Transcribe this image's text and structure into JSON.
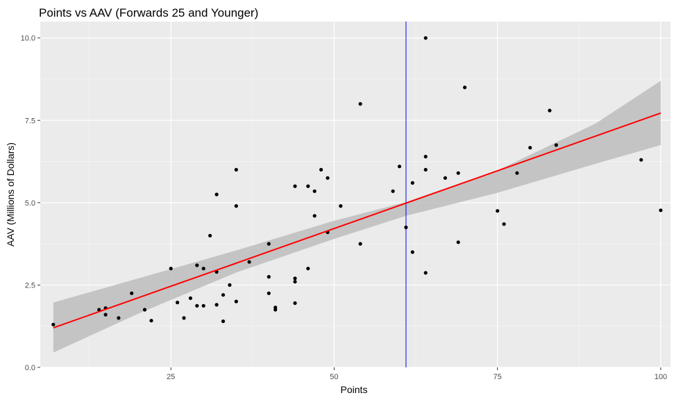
{
  "chart_data": {
    "type": "scatter",
    "title": "Points vs AAV (Forwards 25 and Younger)",
    "xlabel": "Points",
    "ylabel": "AAV (Millions of Dollars)",
    "xlim": [
      5,
      101.5
    ],
    "ylim": [
      0,
      10.5
    ],
    "x_ticks": [
      25,
      50,
      75,
      100
    ],
    "x_tick_labels": [
      "25",
      "50",
      "75",
      "100"
    ],
    "y_ticks": [
      0,
      2.5,
      5,
      7.5,
      10
    ],
    "y_tick_labels": [
      "0.0",
      "2.5",
      "5.0",
      "7.5",
      "10.0"
    ],
    "x_minor_ticks": [
      12.5,
      37.5,
      62.5,
      87.5
    ],
    "y_minor_ticks": [
      1.25,
      3.75,
      6.25,
      8.75
    ],
    "grid": true,
    "background": "#ebebeb",
    "points": [
      {
        "x": 7,
        "y": 1.3
      },
      {
        "x": 14,
        "y": 1.75
      },
      {
        "x": 15,
        "y": 1.8
      },
      {
        "x": 15,
        "y": 1.6
      },
      {
        "x": 17,
        "y": 1.5
      },
      {
        "x": 19,
        "y": 2.25
      },
      {
        "x": 21,
        "y": 1.75
      },
      {
        "x": 22,
        "y": 1.42
      },
      {
        "x": 25,
        "y": 3.0
      },
      {
        "x": 26,
        "y": 1.97
      },
      {
        "x": 27,
        "y": 1.5
      },
      {
        "x": 28,
        "y": 2.1
      },
      {
        "x": 29,
        "y": 3.1
      },
      {
        "x": 29,
        "y": 1.87
      },
      {
        "x": 30,
        "y": 3.0
      },
      {
        "x": 30,
        "y": 1.87
      },
      {
        "x": 31,
        "y": 4.0
      },
      {
        "x": 32,
        "y": 5.25
      },
      {
        "x": 32,
        "y": 2.9
      },
      {
        "x": 32,
        "y": 1.9
      },
      {
        "x": 33,
        "y": 2.2
      },
      {
        "x": 33,
        "y": 1.4
      },
      {
        "x": 34,
        "y": 2.5
      },
      {
        "x": 35,
        "y": 6.0
      },
      {
        "x": 35,
        "y": 4.9
      },
      {
        "x": 35,
        "y": 2.0
      },
      {
        "x": 37,
        "y": 3.2
      },
      {
        "x": 40,
        "y": 3.75
      },
      {
        "x": 40,
        "y": 2.75
      },
      {
        "x": 40,
        "y": 2.25
      },
      {
        "x": 41,
        "y": 1.82
      },
      {
        "x": 41,
        "y": 1.75
      },
      {
        "x": 44,
        "y": 5.5
      },
      {
        "x": 44,
        "y": 2.7
      },
      {
        "x": 44,
        "y": 2.6
      },
      {
        "x": 44,
        "y": 1.95
      },
      {
        "x": 46,
        "y": 5.5
      },
      {
        "x": 46,
        "y": 3.0
      },
      {
        "x": 47,
        "y": 5.35
      },
      {
        "x": 47,
        "y": 4.6
      },
      {
        "x": 48,
        "y": 6.0
      },
      {
        "x": 49,
        "y": 5.75
      },
      {
        "x": 49,
        "y": 4.1
      },
      {
        "x": 51,
        "y": 4.9
      },
      {
        "x": 54,
        "y": 8.0
      },
      {
        "x": 54,
        "y": 3.75
      },
      {
        "x": 59,
        "y": 5.35
      },
      {
        "x": 60,
        "y": 6.1
      },
      {
        "x": 61,
        "y": 4.25
      },
      {
        "x": 62,
        "y": 5.6
      },
      {
        "x": 62,
        "y": 3.5
      },
      {
        "x": 64,
        "y": 10.0
      },
      {
        "x": 64,
        "y": 6.4
      },
      {
        "x": 64,
        "y": 6.0
      },
      {
        "x": 64,
        "y": 2.87
      },
      {
        "x": 67,
        "y": 5.75
      },
      {
        "x": 69,
        "y": 5.9
      },
      {
        "x": 69,
        "y": 3.8
      },
      {
        "x": 70,
        "y": 8.5
      },
      {
        "x": 75,
        "y": 4.75
      },
      {
        "x": 76,
        "y": 4.35
      },
      {
        "x": 78,
        "y": 5.9
      },
      {
        "x": 80,
        "y": 6.67
      },
      {
        "x": 83,
        "y": 7.8
      },
      {
        "x": 84,
        "y": 6.75
      },
      {
        "x": 97,
        "y": 6.3
      },
      {
        "x": 100,
        "y": 4.77
      }
    ],
    "fit_line": {
      "type": "linear",
      "color": "#ff0000",
      "x": [
        7,
        100
      ],
      "y": [
        1.2,
        7.72
      ]
    },
    "confidence_band": {
      "color": "#bdbdbd",
      "x": [
        7,
        20,
        35,
        50,
        61,
        75,
        90,
        100
      ],
      "lower": [
        0.45,
        1.63,
        2.88,
        3.9,
        4.6,
        5.3,
        6.18,
        6.75
      ],
      "upper": [
        1.97,
        2.7,
        3.55,
        4.45,
        5.02,
        5.98,
        7.4,
        8.7
      ]
    },
    "vline": {
      "x": 61,
      "color": "#0000ff"
    },
    "point_color": "#000000"
  }
}
